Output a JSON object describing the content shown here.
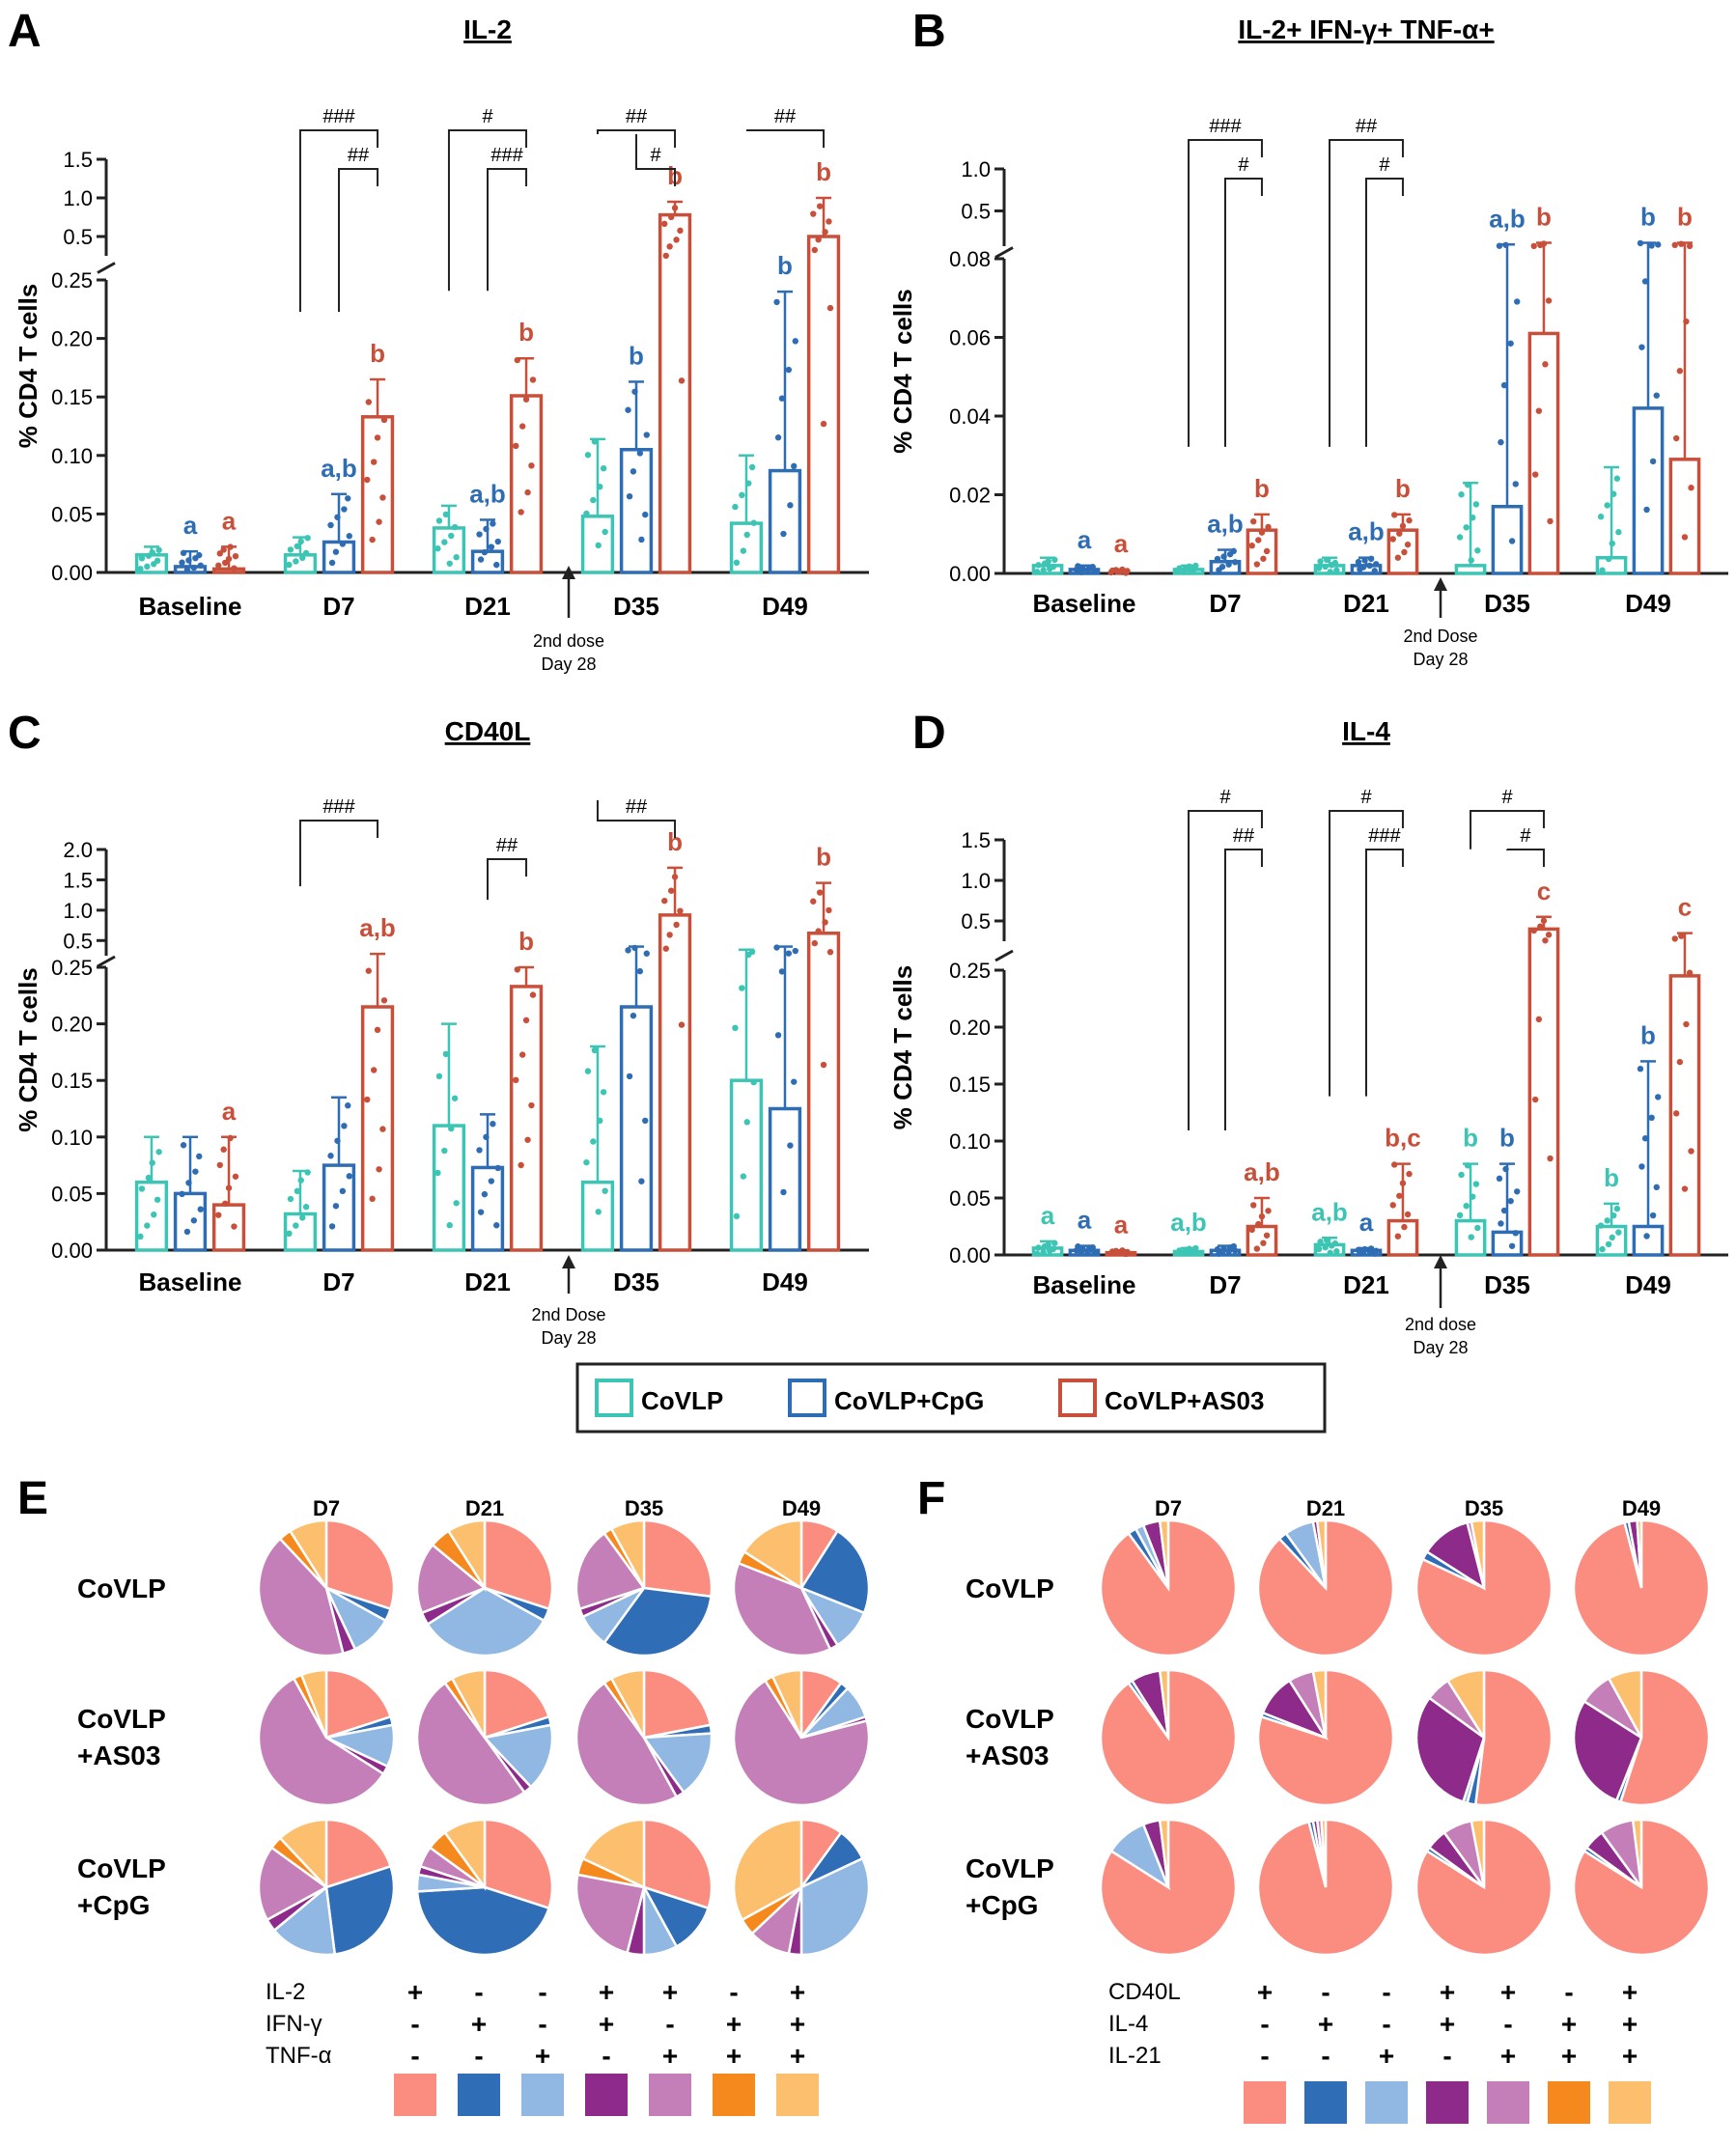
{
  "colors": {
    "CoVLP": "#3cc4b4",
    "CoVLP+CpG": "#2e6db4",
    "CoVLP+AS03": "#c8503a",
    "axis": "#222222",
    "pie": [
      "#fb8c80",
      "#2f6db6",
      "#90b8e2",
      "#8e2a8a",
      "#c47fb9",
      "#f5891e",
      "#fcbf6e"
    ]
  },
  "chart_data": [
    {
      "panel": "A",
      "type": "bar",
      "title": "IL-2",
      "ylabel": "% CD4 T cells",
      "categories": [
        "Baseline",
        "D7",
        "D21",
        "D35",
        "D49"
      ],
      "lower_axis": {
        "ylim": [
          0,
          0.25
        ],
        "ticks": [
          "0.00",
          "0.05",
          "0.10",
          "0.15",
          "0.20",
          "0.25"
        ]
      },
      "upper_axis": {
        "ylim": [
          0.25,
          1.5
        ],
        "ticks": [
          "0.5",
          "1.0",
          "1.5"
        ]
      },
      "series": [
        {
          "name": "CoVLP",
          "values": [
            0.015,
            0.015,
            0.038,
            0.048,
            0.042
          ],
          "sd_upper": [
            0.022,
            0.03,
            0.057,
            0.114,
            0.1
          ]
        },
        {
          "name": "CoVLP+CpG",
          "values": [
            0.005,
            0.026,
            0.018,
            0.105,
            0.087
          ],
          "sd_upper": [
            0.018,
            0.067,
            0.045,
            0.163,
            0.24
          ]
        },
        {
          "name": "CoVLP+AS03",
          "values": [
            0.003,
            0.133,
            0.151,
            0.78,
            0.5
          ],
          "sd_upper": [
            0.022,
            0.165,
            0.183,
            0.95,
            1.0
          ]
        }
      ],
      "letters": [
        [
          "",
          "a",
          "a"
        ],
        [
          "",
          "a,b",
          "b"
        ],
        [
          "",
          "a,b",
          "b"
        ],
        [
          "",
          "b",
          "b"
        ],
        [
          "",
          "b",
          "b"
        ]
      ],
      "brackets": [
        {
          "category": "D7",
          "label": "###",
          "from": "CoVLP"
        },
        {
          "category": "D7",
          "label": "##",
          "from": "CoVLP+CpG"
        },
        {
          "category": "D21",
          "label": "#",
          "from": "CoVLP"
        },
        {
          "category": "D21",
          "label": "###",
          "from": "CoVLP+CpG"
        },
        {
          "category": "D35",
          "label": "##",
          "from": "CoVLP"
        },
        {
          "category": "D35",
          "label": "#",
          "from": "CoVLP+CpG"
        },
        {
          "category": "D49",
          "label": "##",
          "from": "CoVLP"
        }
      ],
      "dose_note": [
        "2nd dose",
        "Day 28"
      ]
    },
    {
      "panel": "B",
      "type": "bar",
      "title": "IL-2+ IFN-γ+ TNF-α+",
      "ylabel": "% CD4 T cells",
      "categories": [
        "Baseline",
        "D7",
        "D21",
        "D35",
        "D49"
      ],
      "lower_axis": {
        "ylim": [
          0,
          0.08
        ],
        "ticks": [
          "0.00",
          "0.02",
          "0.04",
          "0.06",
          "0.08"
        ]
      },
      "upper_axis": {
        "ylim": [
          0.08,
          1.0
        ],
        "ticks": [
          "0.5",
          "1.0"
        ]
      },
      "series": [
        {
          "name": "CoVLP",
          "values": [
            0.002,
            0.001,
            0.002,
            0.002,
            0.004
          ],
          "sd_upper": [
            0.004,
            0.002,
            0.004,
            0.023,
            0.027
          ]
        },
        {
          "name": "CoVLP+CpG",
          "values": [
            0.001,
            0.003,
            0.002,
            0.017,
            0.042
          ],
          "sd_upper": [
            0.002,
            0.006,
            0.004,
            0.1,
            0.12
          ]
        },
        {
          "name": "CoVLP+AS03",
          "values": [
            0.0,
            0.011,
            0.011,
            0.061,
            0.029
          ],
          "sd_upper": [
            0.001,
            0.015,
            0.015,
            0.12,
            0.12
          ]
        }
      ],
      "letters": [
        [
          "",
          "a",
          "a"
        ],
        [
          "",
          "a,b",
          "b"
        ],
        [
          "",
          "a,b",
          "b"
        ],
        [
          "",
          "a,b",
          "b"
        ],
        [
          "",
          "b",
          "b"
        ]
      ],
      "brackets": [
        {
          "category": "D7",
          "label": "###",
          "from": "CoVLP"
        },
        {
          "category": "D7",
          "label": "#",
          "from": "CoVLP+CpG"
        },
        {
          "category": "D21",
          "label": "##",
          "from": "CoVLP"
        },
        {
          "category": "D21",
          "label": "#",
          "from": "CoVLP+CpG"
        }
      ],
      "dose_note": [
        "2nd Dose",
        "Day 28"
      ]
    },
    {
      "panel": "C",
      "type": "bar",
      "title": "CD40L",
      "ylabel": "% CD4 T cells",
      "categories": [
        "Baseline",
        "D7",
        "D21",
        "D35",
        "D49"
      ],
      "lower_axis": {
        "ylim": [
          0,
          0.25
        ],
        "ticks": [
          "0.00",
          "0.05",
          "0.10",
          "0.15",
          "0.20",
          "0.25"
        ]
      },
      "upper_axis": {
        "ylim": [
          0.25,
          2.0
        ],
        "ticks": [
          "0.5",
          "1.0",
          "1.5",
          "2.0"
        ]
      },
      "series": [
        {
          "name": "CoVLP",
          "values": [
            0.06,
            0.032,
            0.11,
            0.06,
            0.15
          ],
          "sd_upper": [
            0.1,
            0.07,
            0.2,
            0.18,
            0.35
          ]
        },
        {
          "name": "CoVLP+CpG",
          "values": [
            0.05,
            0.075,
            0.073,
            0.215,
            0.125
          ],
          "sd_upper": [
            0.1,
            0.135,
            0.12,
            0.4,
            0.4
          ]
        },
        {
          "name": "CoVLP+AS03",
          "values": [
            0.04,
            0.215,
            0.233,
            0.92,
            0.62
          ],
          "sd_upper": [
            0.1,
            0.28,
            0.25,
            1.7,
            1.45
          ]
        }
      ],
      "letters": [
        [
          "",
          "",
          "a"
        ],
        [
          "",
          "",
          "a,b"
        ],
        [
          "",
          "",
          "b"
        ],
        [
          "",
          "",
          "b"
        ],
        [
          "",
          "",
          "b"
        ]
      ],
      "brackets": [
        {
          "category": "D7",
          "label": "###",
          "from": "CoVLP"
        },
        {
          "category": "D21",
          "label": "##",
          "from": "CoVLP+CpG"
        },
        {
          "category": "D35",
          "label": "##",
          "from": "CoVLP"
        }
      ],
      "dose_note": [
        "2nd Dose",
        "Day 28"
      ]
    },
    {
      "panel": "D",
      "type": "bar",
      "title": "IL-4",
      "ylabel": "% CD4 T cells",
      "categories": [
        "Baseline",
        "D7",
        "D21",
        "D35",
        "D49"
      ],
      "lower_axis": {
        "ylim": [
          0,
          0.25
        ],
        "ticks": [
          "0.00",
          "0.05",
          "0.10",
          "0.15",
          "0.20",
          "0.25"
        ]
      },
      "upper_axis": {
        "ylim": [
          0.25,
          1.5
        ],
        "ticks": [
          "0.5",
          "1.0",
          "1.5"
        ]
      },
      "series": [
        {
          "name": "CoVLP",
          "values": [
            0.006,
            0.003,
            0.009,
            0.03,
            0.025
          ],
          "sd_upper": [
            0.012,
            0.006,
            0.015,
            0.08,
            0.045
          ]
        },
        {
          "name": "CoVLP+CpG",
          "values": [
            0.004,
            0.004,
            0.004,
            0.02,
            0.025
          ],
          "sd_upper": [
            0.008,
            0.008,
            0.006,
            0.08,
            0.17
          ]
        },
        {
          "name": "CoVLP+AS03",
          "values": [
            0.002,
            0.025,
            0.03,
            0.4,
            0.245
          ],
          "sd_upper": [
            0.004,
            0.05,
            0.08,
            0.55,
            0.35
          ]
        }
      ],
      "letters": [
        [
          "a",
          "a",
          "a"
        ],
        [
          "a,b",
          "",
          "a,b"
        ],
        [
          "a,b",
          "a",
          "b,c"
        ],
        [
          "b",
          "b",
          "c"
        ],
        [
          "b",
          "b",
          "c"
        ]
      ],
      "brackets": [
        {
          "category": "D7",
          "label": "#",
          "from": "CoVLP"
        },
        {
          "category": "D7",
          "label": "##",
          "from": "CoVLP+CpG"
        },
        {
          "category": "D21",
          "label": "#",
          "from": "CoVLP"
        },
        {
          "category": "D21",
          "label": "###",
          "from": "CoVLP+CpG"
        },
        {
          "category": "D35",
          "label": "#",
          "from": "CoVLP"
        },
        {
          "category": "D35",
          "label": "#",
          "from": "CoVLP+CpG"
        }
      ],
      "dose_note": [
        "2nd dose",
        "Day 28"
      ]
    },
    {
      "panel": "E",
      "type": "pie",
      "timepoints": [
        "D7",
        "D21",
        "D35",
        "D49"
      ],
      "rows": [
        "CoVLP",
        "CoVLP\n+AS03",
        "CoVLP\n+CpG"
      ],
      "markers": [
        "IL-2",
        "IFN-γ",
        "TNF-α"
      ],
      "combinations": [
        [
          "+",
          "-",
          "-"
        ],
        [
          "-",
          "+",
          "-"
        ],
        [
          "-",
          "-",
          "+"
        ],
        [
          "+",
          "+",
          "-"
        ],
        [
          "+",
          "-",
          "+"
        ],
        [
          "-",
          "+",
          "+"
        ],
        [
          "+",
          "+",
          "+"
        ]
      ],
      "slices": [
        [
          [
            30,
            3,
            10,
            3,
            42,
            3,
            9
          ],
          [
            30,
            3,
            33,
            3,
            17,
            5,
            9
          ],
          [
            27,
            33,
            8,
            2,
            20,
            2,
            8
          ],
          [
            9,
            22,
            10,
            2,
            38,
            3,
            16
          ]
        ],
        [
          [
            20,
            2,
            10,
            2,
            58,
            2,
            6
          ],
          [
            20,
            2,
            16,
            2,
            50,
            2,
            8
          ],
          [
            22,
            2,
            16,
            2,
            48,
            2,
            8
          ],
          [
            10,
            2,
            8,
            1,
            70,
            2,
            7
          ]
        ],
        [
          [
            20,
            28,
            16,
            3,
            18,
            3,
            12
          ],
          [
            30,
            44,
            4,
            2,
            5,
            5,
            10
          ],
          [
            30,
            12,
            8,
            4,
            24,
            4,
            18
          ],
          [
            10,
            8,
            32,
            3,
            10,
            4,
            33
          ]
        ]
      ]
    },
    {
      "panel": "F",
      "type": "pie",
      "timepoints": [
        "D7",
        "D21",
        "D35",
        "D49"
      ],
      "rows": [
        "CoVLP",
        "CoVLP\n+AS03",
        "CoVLP\n+CpG"
      ],
      "markers": [
        "CD40L",
        "IL-4",
        "IL-21"
      ],
      "combinations": [
        [
          "+",
          "-",
          "-"
        ],
        [
          "-",
          "+",
          "-"
        ],
        [
          "-",
          "-",
          "+"
        ],
        [
          "+",
          "+",
          "-"
        ],
        [
          "+",
          "-",
          "+"
        ],
        [
          "-",
          "+",
          "+"
        ],
        [
          "+",
          "+",
          "+"
        ]
      ],
      "slices": [
        [
          [
            90,
            2,
            2,
            4,
            0,
            0,
            2
          ],
          [
            88,
            2,
            7,
            1,
            0,
            0,
            2
          ],
          [
            82,
            2,
            0,
            12,
            1,
            0,
            3
          ],
          [
            96,
            1,
            0,
            2,
            0,
            0,
            1
          ]
        ],
        [
          [
            90,
            1,
            0,
            7,
            0,
            0,
            2
          ],
          [
            80,
            1,
            0,
            10,
            6,
            0,
            3
          ],
          [
            52,
            2,
            1,
            30,
            6,
            0,
            9
          ],
          [
            55,
            1,
            0,
            28,
            8,
            0,
            8
          ]
        ],
        [
          [
            84,
            0,
            10,
            4,
            0,
            0,
            2
          ],
          [
            96,
            1,
            0,
            1,
            1,
            0,
            1
          ],
          [
            84,
            1,
            0,
            5,
            7,
            0,
            3
          ],
          [
            84,
            1,
            0,
            5,
            8,
            0,
            2
          ]
        ]
      ]
    }
  ],
  "legend": {
    "items": [
      "CoVLP",
      "CoVLP+CpG",
      "CoVLP+AS03"
    ]
  }
}
